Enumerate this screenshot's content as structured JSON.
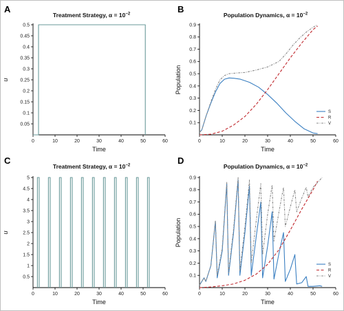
{
  "chart_data": [
    {
      "panel": "A",
      "type": "line",
      "title": "Treatment Strategy, α = 10",
      "title_exp": "−2",
      "xlabel": "Time",
      "ylabel": "u",
      "xlim": [
        0,
        60
      ],
      "ylim": [
        0,
        0.5
      ],
      "xticks": [
        0,
        10,
        20,
        30,
        40,
        50,
        60
      ],
      "yticks": [
        0.05,
        0.1,
        0.15,
        0.2,
        0.25,
        0.3,
        0.35,
        0.4,
        0.45,
        0.5
      ],
      "ytick_labels": [
        "0.05",
        "0.1",
        "0.15",
        "0.2",
        "0.25",
        "0.3",
        "0.35",
        "0.4",
        "0.45",
        "0.5"
      ],
      "series": [
        {
          "color": "#6a9a9a",
          "x": [
            0,
            2.5,
            2.5,
            51,
            51
          ],
          "y": [
            0,
            0,
            0.5,
            0.5,
            0
          ]
        }
      ]
    },
    {
      "panel": "B",
      "type": "line",
      "title": "Population Dynamics, α = 10",
      "title_exp": "−2",
      "xlabel": "Time",
      "ylabel": "Population",
      "xlim": [
        0,
        60
      ],
      "ylim": [
        0,
        0.9
      ],
      "xticks": [
        0,
        10,
        20,
        30,
        40,
        50,
        60
      ],
      "yticks": [
        0.1,
        0.2,
        0.3,
        0.4,
        0.5,
        0.6,
        0.7,
        0.8,
        0.9
      ],
      "ytick_labels": [
        "0.1",
        "0.2",
        "0.3",
        "0.4",
        "0.5",
        "0.6",
        "0.7",
        "0.8",
        "0.9"
      ],
      "legend": "bottom-right",
      "series": [
        {
          "name": "S",
          "color": "#3a7fc1",
          "dash": "",
          "x": [
            0,
            1,
            2,
            3,
            5,
            7,
            9,
            11,
            13,
            15,
            18,
            22,
            26,
            30,
            34,
            38,
            42,
            46,
            50,
            52
          ],
          "y": [
            0.02,
            0.04,
            0.1,
            0.16,
            0.26,
            0.35,
            0.42,
            0.455,
            0.465,
            0.463,
            0.455,
            0.43,
            0.39,
            0.33,
            0.26,
            0.18,
            0.11,
            0.05,
            0.015,
            0.01
          ]
        },
        {
          "name": "R",
          "color": "#c0282d",
          "dash": "4,2.5",
          "x": [
            0,
            5,
            10,
            15,
            20,
            25,
            30,
            35,
            40,
            45,
            50,
            52
          ],
          "y": [
            0,
            0.005,
            0.03,
            0.08,
            0.15,
            0.25,
            0.37,
            0.5,
            0.63,
            0.75,
            0.86,
            0.89
          ]
        },
        {
          "name": "V",
          "color": "#8a8a8a",
          "dash": "3,1.5,1,1.5",
          "x": [
            0,
            1,
            2,
            3,
            5,
            7,
            9,
            11,
            13,
            16,
            20,
            25,
            30,
            35,
            38,
            41,
            44,
            47,
            50,
            52
          ],
          "y": [
            0.02,
            0.04,
            0.1,
            0.16,
            0.27,
            0.37,
            0.45,
            0.485,
            0.5,
            0.505,
            0.51,
            0.53,
            0.555,
            0.6,
            0.66,
            0.73,
            0.79,
            0.84,
            0.88,
            0.9
          ]
        }
      ]
    },
    {
      "panel": "C",
      "type": "line",
      "title": "Treatment Strategy, α = 10",
      "title_exp": "−2",
      "xlabel": "Time",
      "ylabel": "u",
      "xlim": [
        0,
        60
      ],
      "ylim": [
        0,
        5
      ],
      "xticks": [
        0,
        10,
        20,
        30,
        40,
        50,
        60
      ],
      "yticks": [
        0.5,
        1,
        1.5,
        2,
        2.5,
        3,
        3.5,
        4,
        4.5,
        5
      ],
      "ytick_labels": [
        "0.5",
        "1",
        "1.5",
        "2",
        "2.5",
        "3",
        "3.5",
        "4",
        "4.5",
        "5"
      ],
      "pulses": {
        "color": "#6a9a9a",
        "value": 5,
        "starts": [
          2,
          7,
          12,
          17,
          22,
          27,
          32,
          37,
          42,
          47,
          52
        ],
        "width": 0.8
      }
    },
    {
      "panel": "D",
      "type": "line",
      "title": "Population Dynamics, α = 10",
      "title_exp": "−2",
      "xlabel": "Time",
      "ylabel": "Population",
      "xlim": [
        0,
        60
      ],
      "ylim": [
        0,
        0.9
      ],
      "xticks": [
        0,
        10,
        20,
        30,
        40,
        50,
        60
      ],
      "yticks": [
        0.1,
        0.2,
        0.3,
        0.4,
        0.5,
        0.6,
        0.7,
        0.8,
        0.9
      ],
      "ytick_labels": [
        "0.1",
        "0.2",
        "0.3",
        "0.4",
        "0.5",
        "0.6",
        "0.7",
        "0.8",
        "0.9"
      ],
      "legend": "bottom-right",
      "series": [
        {
          "name": "S",
          "color": "#3a7fc1",
          "dash": "",
          "x": [
            0,
            2,
            2.8,
            5,
            7,
            7.8,
            10,
            12,
            12.8,
            15,
            17,
            17.8,
            20,
            22,
            22.8,
            25,
            27,
            27.8,
            30,
            32,
            32.8,
            35,
            37,
            37.8,
            40,
            42,
            42.8,
            45,
            47,
            47.8,
            50,
            53,
            54
          ],
          "y": [
            0.02,
            0.08,
            0.05,
            0.18,
            0.54,
            0.08,
            0.3,
            0.85,
            0.1,
            0.45,
            0.88,
            0.1,
            0.45,
            0.83,
            0.1,
            0.42,
            0.7,
            0.08,
            0.34,
            0.62,
            0.07,
            0.28,
            0.45,
            0.05,
            0.15,
            0.27,
            0.03,
            0.04,
            0.09,
            0.01,
            0.01,
            0.015,
            0.01
          ]
        },
        {
          "name": "R",
          "color": "#c0282d",
          "dash": "4,2.5",
          "x": [
            0,
            5,
            10,
            15,
            20,
            25,
            30,
            35,
            40,
            45,
            50,
            52
          ],
          "y": [
            0,
            0.005,
            0.015,
            0.03,
            0.06,
            0.11,
            0.19,
            0.31,
            0.47,
            0.64,
            0.8,
            0.87
          ]
        },
        {
          "name": "V",
          "color": "#8a8a8a",
          "dash": "3,1.5,1,1.5",
          "x": [
            0,
            2,
            2.8,
            5,
            7,
            7.8,
            10,
            12,
            12.8,
            15,
            17,
            17.8,
            20,
            22,
            22.8,
            25,
            27,
            27.8,
            30,
            32,
            32.8,
            35,
            37,
            37.8,
            40,
            42,
            42.8,
            45,
            47,
            47.8,
            50,
            53,
            54
          ],
          "y": [
            0.02,
            0.08,
            0.05,
            0.18,
            0.55,
            0.1,
            0.32,
            0.86,
            0.12,
            0.48,
            0.9,
            0.14,
            0.5,
            0.88,
            0.2,
            0.55,
            0.85,
            0.27,
            0.6,
            0.84,
            0.38,
            0.62,
            0.82,
            0.5,
            0.66,
            0.8,
            0.62,
            0.73,
            0.82,
            0.74,
            0.82,
            0.88,
            0.9
          ]
        }
      ]
    }
  ]
}
